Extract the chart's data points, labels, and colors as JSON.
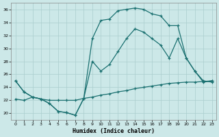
{
  "background_color": "#cce8e8",
  "grid_color": "#aacece",
  "line_color": "#1a7070",
  "xlabel": "Humidex (Indice chaleur)",
  "xlim": [
    -0.5,
    23.5
  ],
  "ylim": [
    19,
    37
  ],
  "yticks": [
    20,
    22,
    24,
    26,
    28,
    30,
    32,
    34,
    36
  ],
  "xticks": [
    0,
    1,
    2,
    3,
    4,
    5,
    6,
    7,
    8,
    9,
    10,
    11,
    12,
    13,
    14,
    15,
    16,
    17,
    18,
    19,
    20,
    21,
    22,
    23
  ],
  "line1_x": [
    0,
    1,
    2,
    3,
    4,
    5,
    6,
    7,
    8,
    9,
    10,
    11,
    12,
    13,
    14,
    15,
    16,
    17,
    18,
    19,
    20,
    21,
    22,
    23
  ],
  "line1_y": [
    25.0,
    23.3,
    22.5,
    22.2,
    21.5,
    20.3,
    20.1,
    19.7,
    22.3,
    31.5,
    34.3,
    34.5,
    35.8,
    36.0,
    36.2,
    36.0,
    35.3,
    35.0,
    33.5,
    33.5,
    28.5,
    26.5,
    25.0,
    24.8
  ],
  "line2_x": [
    0,
    1,
    2,
    3,
    4,
    5,
    6,
    7,
    8,
    9,
    10,
    11,
    12,
    13,
    14,
    15,
    16,
    17,
    18,
    19,
    20,
    21,
    22,
    23
  ],
  "line2_y": [
    22.2,
    22.0,
    22.5,
    22.2,
    22.0,
    22.0,
    22.0,
    22.0,
    22.3,
    22.5,
    22.8,
    23.0,
    23.3,
    23.5,
    23.8,
    24.0,
    24.2,
    24.4,
    24.6,
    24.7,
    24.8,
    24.8,
    24.9,
    25.0
  ],
  "line3_x": [
    0,
    1,
    2,
    3,
    4,
    5,
    6,
    7,
    8,
    9,
    10,
    11,
    12,
    13,
    14,
    15,
    16,
    17,
    18,
    19,
    20,
    21,
    22,
    23
  ],
  "line3_y": [
    25.0,
    23.3,
    22.5,
    22.2,
    21.5,
    20.3,
    20.1,
    19.7,
    22.3,
    28.0,
    26.5,
    27.5,
    29.5,
    31.5,
    33.0,
    32.5,
    31.5,
    30.5,
    28.5,
    31.5,
    28.5,
    26.5,
    24.8,
    25.0
  ]
}
